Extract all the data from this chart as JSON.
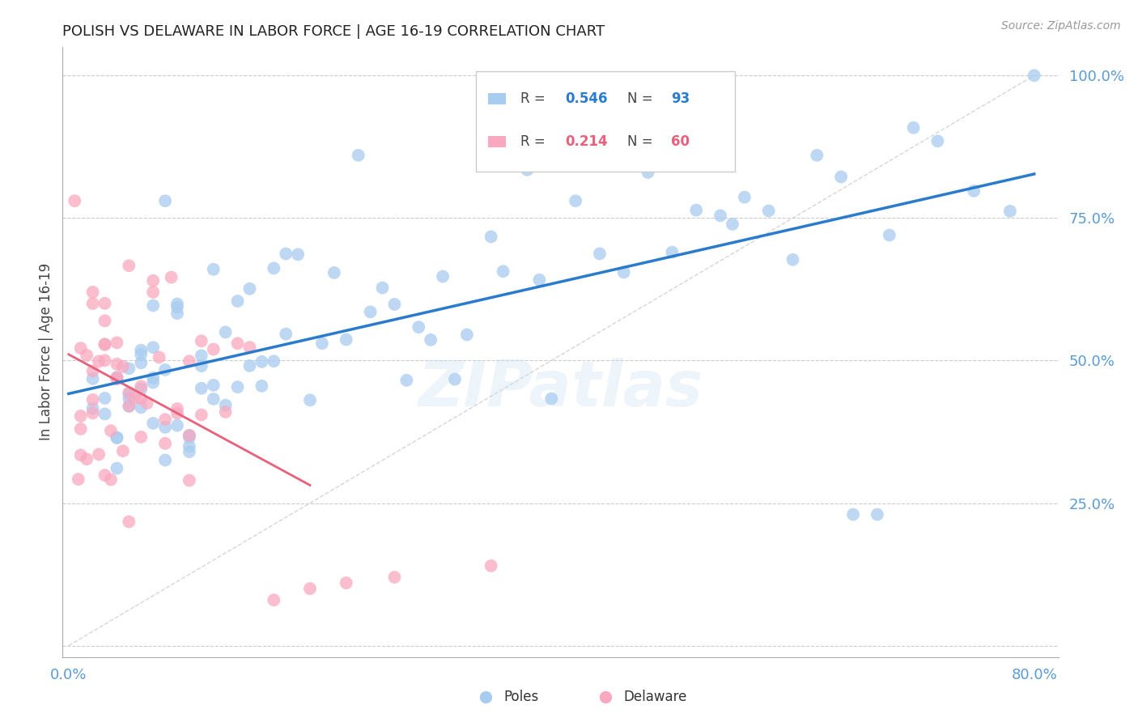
{
  "title": "POLISH VS DELAWARE IN LABOR FORCE | AGE 16-19 CORRELATION CHART",
  "source": "Source: ZipAtlas.com",
  "ylabel": "In Labor Force | Age 16-19",
  "watermark": "ZIPatlas",
  "legend_blue_r": "0.546",
  "legend_blue_n": "93",
  "legend_pink_r": "0.214",
  "legend_pink_n": "60",
  "legend_label_blue": "Poles",
  "legend_label_pink": "Delaware",
  "title_color": "#222222",
  "source_color": "#999999",
  "blue_color": "#A8CCF0",
  "blue_line_color": "#2B7BCC",
  "pink_color": "#F9A8C0",
  "pink_line_color": "#E8607A",
  "right_label_color": "#5B9BD5",
  "bottom_label_color": "#5B9BD5",
  "legend_r_color": "#333333",
  "legend_val_blue": "#2B7BCC",
  "legend_val_pink": "#E8607A"
}
